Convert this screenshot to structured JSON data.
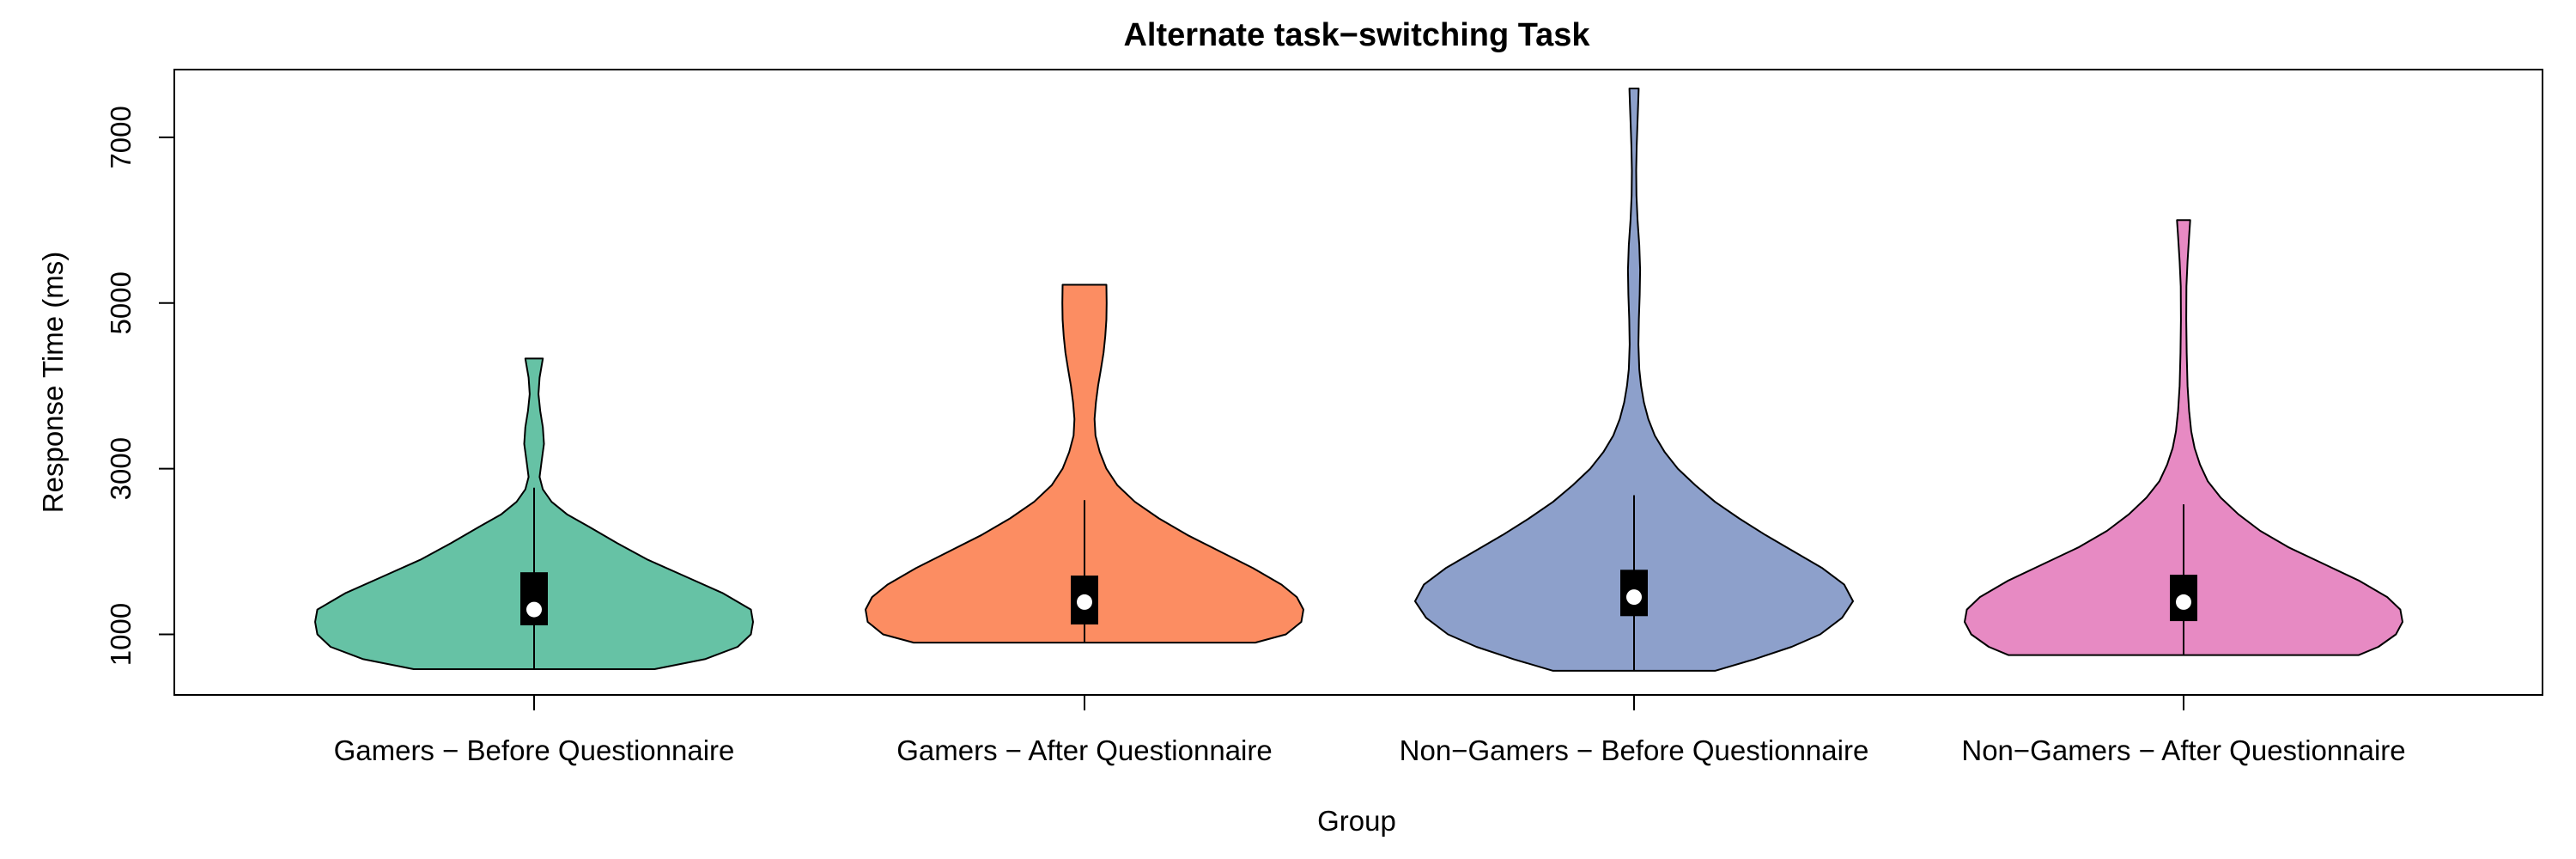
{
  "chart_data": {
    "type": "violin",
    "title": "Alternate task−switching Task",
    "xlabel": "Group",
    "ylabel": "Response Time (ms)",
    "ylim": [
      269,
      7818
    ],
    "yticks": [
      {
        "value": 1000,
        "label": "1000"
      },
      {
        "value": 3000,
        "label": "3000"
      },
      {
        "value": 5000,
        "label": "5000"
      },
      {
        "value": 7000,
        "label": "7000"
      }
    ],
    "categories": [
      "Gamers − Before Questionnaire",
      "Gamers − After Questionnaire",
      "Non−Gamers − Before Questionnaire",
      "Non−Gamers − After Questionnaire"
    ],
    "grid": false,
    "legend": "none",
    "groups": [
      {
        "category": "Gamers − Before Questionnaire",
        "color": "#66c2a5",
        "min": 580,
        "q1": 1110,
        "median": 1300,
        "q3": 1750,
        "whisker_high": 2770,
        "max": 4330,
        "density": [
          [
            580,
            0.55
          ],
          [
            700,
            0.78
          ],
          [
            850,
            0.93
          ],
          [
            1000,
            0.99
          ],
          [
            1150,
            1.0
          ],
          [
            1300,
            0.99
          ],
          [
            1500,
            0.86
          ],
          [
            1700,
            0.69
          ],
          [
            1900,
            0.52
          ],
          [
            2100,
            0.38
          ],
          [
            2300,
            0.25
          ],
          [
            2450,
            0.15
          ],
          [
            2600,
            0.08
          ],
          [
            2750,
            0.04
          ],
          [
            2900,
            0.025
          ],
          [
            3100,
            0.035
          ],
          [
            3300,
            0.045
          ],
          [
            3500,
            0.04
          ],
          [
            3700,
            0.028
          ],
          [
            3900,
            0.02
          ],
          [
            4100,
            0.025
          ],
          [
            4250,
            0.035
          ],
          [
            4330,
            0.04
          ]
        ]
      },
      {
        "category": "Gamers − After Questionnaire",
        "color": "#fc8d62",
        "min": 900,
        "q1": 1120,
        "median": 1390,
        "q3": 1710,
        "whisker_high": 2620,
        "max": 5220,
        "density": [
          [
            900,
            0.78
          ],
          [
            1000,
            0.92
          ],
          [
            1150,
            0.99
          ],
          [
            1300,
            1.0
          ],
          [
            1450,
            0.97
          ],
          [
            1600,
            0.9
          ],
          [
            1800,
            0.77
          ],
          [
            2000,
            0.62
          ],
          [
            2200,
            0.47
          ],
          [
            2400,
            0.34
          ],
          [
            2600,
            0.23
          ],
          [
            2800,
            0.15
          ],
          [
            3000,
            0.1
          ],
          [
            3200,
            0.07
          ],
          [
            3400,
            0.05
          ],
          [
            3600,
            0.046
          ],
          [
            3800,
            0.052
          ],
          [
            4000,
            0.062
          ],
          [
            4200,
            0.075
          ],
          [
            4400,
            0.087
          ],
          [
            4600,
            0.095
          ],
          [
            4800,
            0.1
          ],
          [
            5000,
            0.101
          ],
          [
            5220,
            0.1
          ]
        ]
      },
      {
        "category": "Non−Gamers − Before Questionnaire",
        "color": "#8da0cb",
        "min": 560,
        "q1": 1220,
        "median": 1450,
        "q3": 1780,
        "whisker_high": 2680,
        "max": 7590,
        "density": [
          [
            560,
            0.37
          ],
          [
            700,
            0.55
          ],
          [
            850,
            0.72
          ],
          [
            1000,
            0.85
          ],
          [
            1200,
            0.95
          ],
          [
            1400,
            1.0
          ],
          [
            1600,
            0.96
          ],
          [
            1800,
            0.86
          ],
          [
            2000,
            0.73
          ],
          [
            2200,
            0.6
          ],
          [
            2400,
            0.48
          ],
          [
            2600,
            0.37
          ],
          [
            2800,
            0.28
          ],
          [
            3000,
            0.2
          ],
          [
            3200,
            0.14
          ],
          [
            3400,
            0.095
          ],
          [
            3600,
            0.065
          ],
          [
            3800,
            0.045
          ],
          [
            4000,
            0.032
          ],
          [
            4200,
            0.024
          ],
          [
            4500,
            0.02
          ],
          [
            4800,
            0.022
          ],
          [
            5100,
            0.026
          ],
          [
            5400,
            0.028
          ],
          [
            5700,
            0.024
          ],
          [
            6000,
            0.016
          ],
          [
            6300,
            0.011
          ],
          [
            6600,
            0.01
          ],
          [
            6900,
            0.012
          ],
          [
            7200,
            0.016
          ],
          [
            7400,
            0.019
          ],
          [
            7590,
            0.021
          ]
        ]
      },
      {
        "category": "Non−Gamers − After Questionnaire",
        "color": "#e78ac3",
        "min": 750,
        "q1": 1160,
        "median": 1390,
        "q3": 1720,
        "whisker_high": 2570,
        "max": 6000,
        "density": [
          [
            750,
            0.8
          ],
          [
            850,
            0.89
          ],
          [
            1000,
            0.97
          ],
          [
            1150,
            1.0
          ],
          [
            1300,
            0.99
          ],
          [
            1450,
            0.93
          ],
          [
            1650,
            0.8
          ],
          [
            1850,
            0.64
          ],
          [
            2050,
            0.48
          ],
          [
            2250,
            0.35
          ],
          [
            2450,
            0.25
          ],
          [
            2650,
            0.17
          ],
          [
            2850,
            0.11
          ],
          [
            3050,
            0.075
          ],
          [
            3250,
            0.05
          ],
          [
            3450,
            0.035
          ],
          [
            3700,
            0.025
          ],
          [
            4000,
            0.018
          ],
          [
            4400,
            0.014
          ],
          [
            4800,
            0.012
          ],
          [
            5200,
            0.013
          ],
          [
            5500,
            0.018
          ],
          [
            5800,
            0.025
          ],
          [
            6000,
            0.03
          ]
        ]
      }
    ]
  }
}
